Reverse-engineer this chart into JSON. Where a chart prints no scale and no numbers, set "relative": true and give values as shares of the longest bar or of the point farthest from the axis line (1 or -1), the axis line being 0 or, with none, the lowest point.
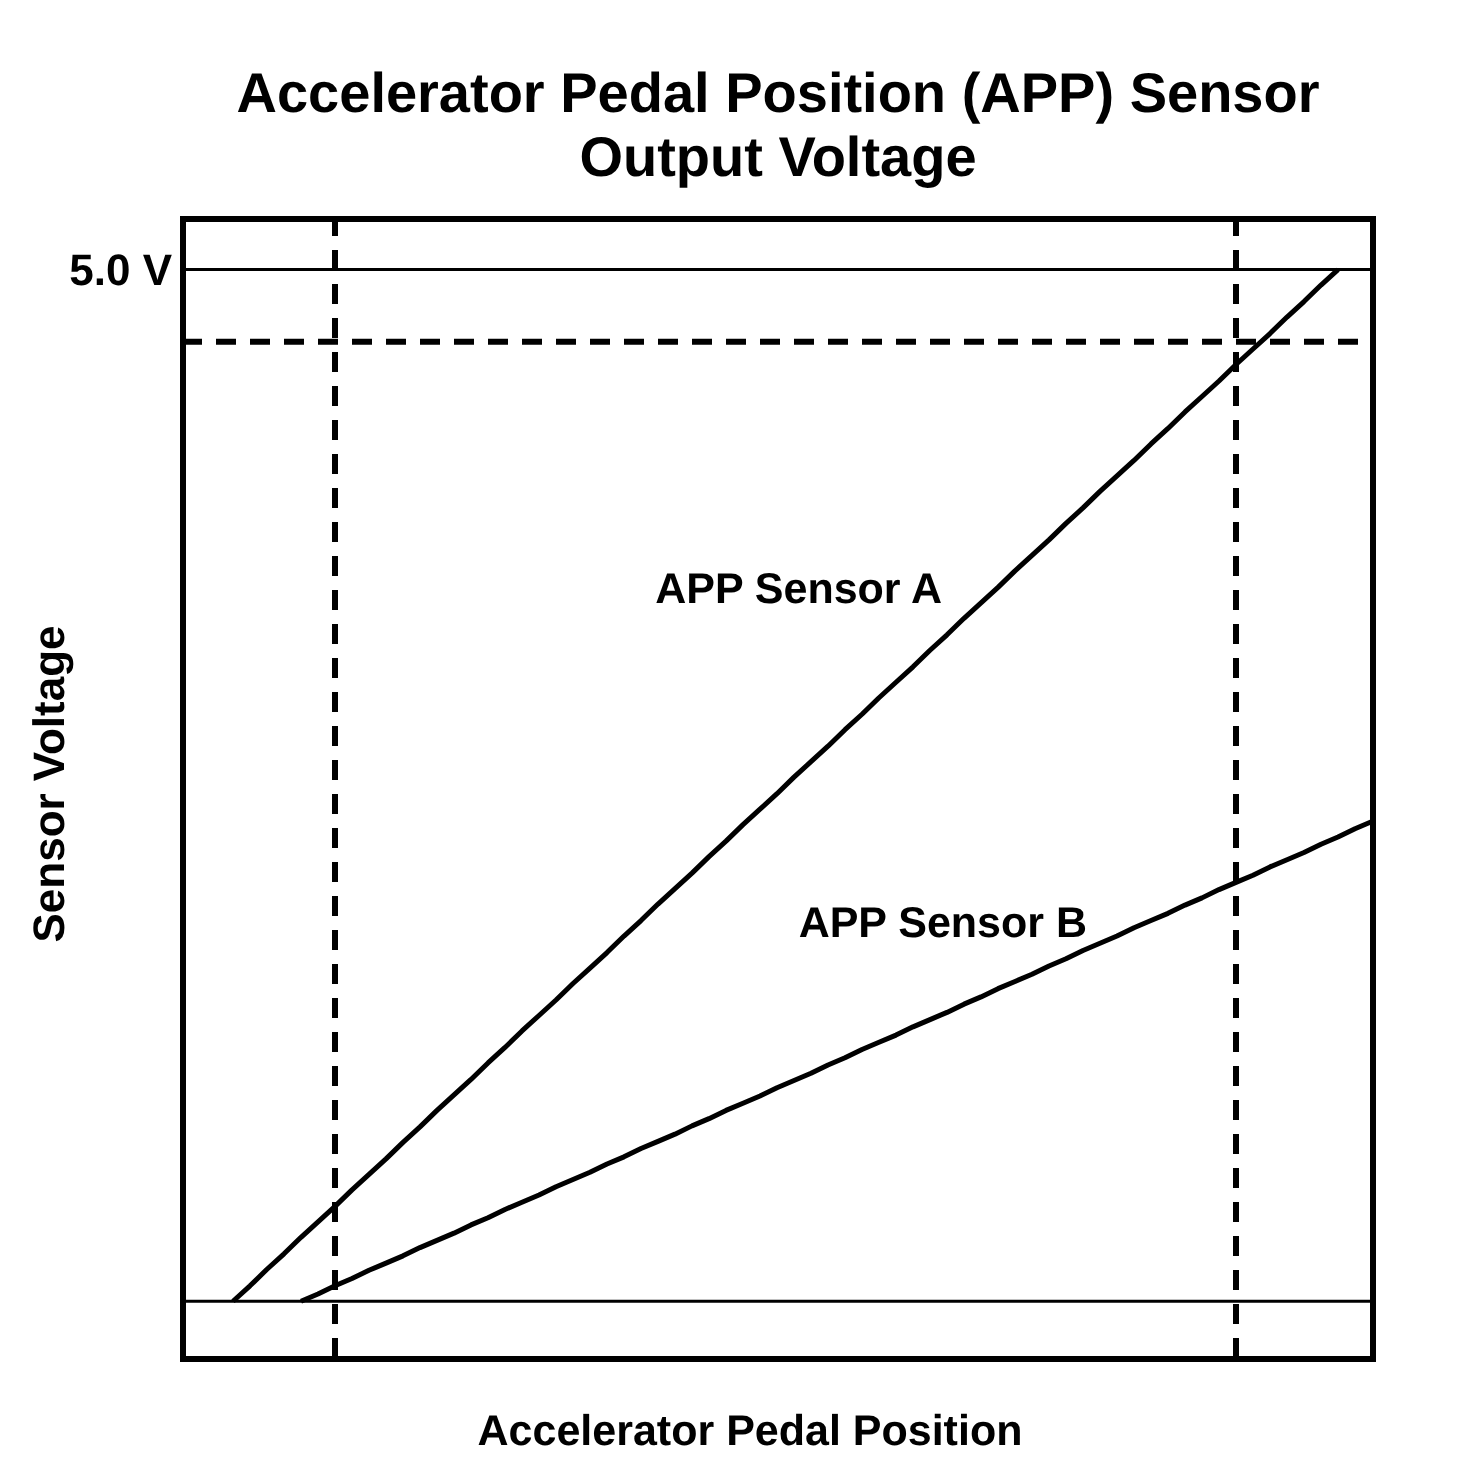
{
  "chart_data": {
    "type": "line",
    "title": "Accelerator Pedal Position (APP) Sensor Output Voltage",
    "xlabel": "Accelerator Pedal Position",
    "ylabel": "Sensor Voltage",
    "relative": true,
    "tick_labels": false,
    "categories": [
      null,
      null,
      null,
      null,
      null,
      null,
      null,
      null,
      null,
      null,
      null,
      null,
      null,
      null,
      null,
      null,
      null,
      null,
      null,
      null,
      null,
      null,
      null,
      null,
      null,
      null,
      null,
      null,
      null,
      null,
      null,
      null,
      null,
      null,
      null,
      null,
      null,
      null,
      null,
      null,
      null,
      null,
      null,
      null,
      null,
      null,
      null,
      null,
      null,
      null,
      null,
      null,
      null,
      null,
      null,
      null,
      null,
      null,
      null,
      null,
      null,
      null,
      null,
      null,
      null,
      null,
      null,
      null,
      null,
      null,
      null
    ],
    "series": [
      {
        "name": "APP Sensor A",
        "color": "#000000",
        "values": [
          null,
          null,
          null,
          0,
          0.015,
          0.031,
          0.046,
          0.062,
          0.077,
          0.092,
          0.108,
          0.123,
          0.138,
          0.154,
          0.169,
          0.185,
          0.2,
          0.215,
          0.231,
          0.246,
          0.262,
          0.277,
          0.292,
          0.308,
          0.323,
          0.338,
          0.354,
          0.369,
          0.385,
          0.4,
          0.415,
          0.431,
          0.446,
          0.462,
          0.477,
          0.492,
          0.508,
          0.523,
          0.538,
          0.554,
          0.569,
          0.585,
          0.6,
          0.615,
          0.631,
          0.646,
          0.662,
          0.677,
          0.692,
          0.708,
          0.723,
          0.738,
          0.754,
          0.769,
          0.785,
          0.8,
          0.815,
          0.831,
          0.846,
          0.862,
          0.877,
          0.892,
          0.908,
          0.923,
          0.938,
          0.954,
          0.969,
          0.985,
          1,
          null,
          null
        ]
      },
      {
        "name": "APP Sensor B",
        "color": "#000000",
        "values": [
          null,
          null,
          null,
          null,
          null,
          null,
          null,
          0,
          0.007,
          0.015,
          0.022,
          0.03,
          0.037,
          0.044,
          0.052,
          0.059,
          0.066,
          0.074,
          0.081,
          0.089,
          0.096,
          0.103,
          0.111,
          0.118,
          0.125,
          0.133,
          0.14,
          0.148,
          0.155,
          0.162,
          0.17,
          0.177,
          0.185,
          0.192,
          0.199,
          0.207,
          0.214,
          0.221,
          0.229,
          0.236,
          0.244,
          0.251,
          0.258,
          0.266,
          0.273,
          0.28,
          0.288,
          0.295,
          0.303,
          0.31,
          0.317,
          0.325,
          0.332,
          0.34,
          0.347,
          0.354,
          0.362,
          0.369,
          0.376,
          0.384,
          0.391,
          0.399,
          0.406,
          0.413,
          0.421,
          0.428,
          0.435,
          0.443,
          0.45,
          0.458,
          0.465
        ]
      }
    ],
    "ref_lines": [
      {
        "axis": "y",
        "value": 1,
        "label": "5.0 V"
      },
      {
        "axis": "y",
        "value": 0
      },
      {
        "axis": "y",
        "value": 0.93,
        "line_style": "dashed"
      }
    ]
  }
}
